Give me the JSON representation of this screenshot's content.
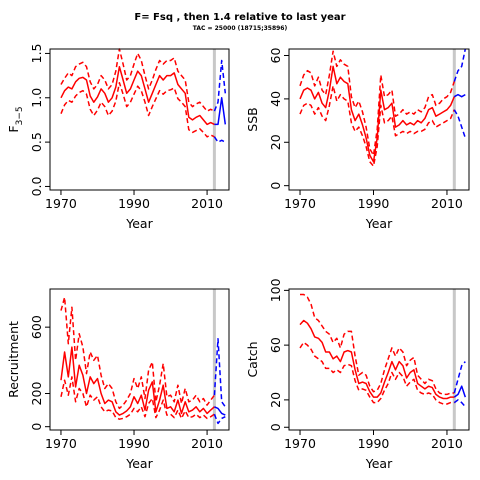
{
  "title": "F= Fsq , then 1.4  relative to last year",
  "subtitle": "TAC = 25000 (18715;35896)",
  "colors": {
    "history": "#ff0000",
    "forecast": "#0000ff",
    "reference": "#c8c8c8"
  },
  "chart_data": [
    {
      "type": "line",
      "panel": "top-left",
      "ylabel_main": "F",
      "ylabel_sub": "3−5",
      "xlabel": "Year",
      "xlim": [
        1967,
        2016
      ],
      "ylim": [
        -0.04,
        1.55
      ],
      "xticks": [
        "1970",
        "1990",
        "2010"
      ],
      "xtick_values": [
        1970,
        1990,
        2010
      ],
      "yticks": [
        "0.0",
        "0.5",
        "1.0",
        "1.5"
      ],
      "ytick_values": [
        0,
        0.5,
        1,
        1.5
      ],
      "reference_x": 2012,
      "history": {
        "years": [
          1970,
          1971,
          1972,
          1973,
          1974,
          1975,
          1976,
          1977,
          1978,
          1979,
          1980,
          1981,
          1982,
          1983,
          1984,
          1985,
          1986,
          1987,
          1988,
          1989,
          1990,
          1991,
          1992,
          1993,
          1994,
          1995,
          1996,
          1997,
          1998,
          1999,
          2000,
          2001,
          2002,
          2003,
          2004,
          2005,
          2006,
          2007,
          2008,
          2009,
          2010,
          2011,
          2012
        ],
        "mid": [
          1.0,
          1.08,
          1.12,
          1.1,
          1.18,
          1.22,
          1.23,
          1.2,
          1.02,
          0.95,
          1.01,
          1.1,
          1.05,
          0.95,
          1.0,
          1.12,
          1.35,
          1.2,
          1.05,
          1.1,
          1.2,
          1.3,
          1.25,
          1.1,
          0.95,
          1.05,
          1.15,
          1.25,
          1.2,
          1.25,
          1.25,
          1.28,
          1.15,
          1.1,
          1.05,
          0.78,
          0.75,
          0.78,
          0.8,
          0.75,
          0.7,
          0.72,
          0.7
        ],
        "upper": [
          1.15,
          1.22,
          1.28,
          1.25,
          1.35,
          1.38,
          1.4,
          1.35,
          1.18,
          1.1,
          1.15,
          1.25,
          1.2,
          1.1,
          1.15,
          1.3,
          1.55,
          1.38,
          1.2,
          1.25,
          1.38,
          1.5,
          1.42,
          1.25,
          1.1,
          1.2,
          1.32,
          1.42,
          1.38,
          1.42,
          1.42,
          1.45,
          1.3,
          1.25,
          1.2,
          0.95,
          0.9,
          0.93,
          0.95,
          0.9,
          0.85,
          0.87,
          0.85
        ],
        "lower": [
          0.82,
          0.92,
          0.97,
          0.95,
          1.02,
          1.06,
          1.08,
          1.04,
          0.87,
          0.8,
          0.86,
          0.95,
          0.9,
          0.8,
          0.85,
          0.96,
          1.17,
          1.04,
          0.9,
          0.95,
          1.04,
          1.13,
          1.08,
          0.95,
          0.8,
          0.9,
          0.99,
          1.08,
          1.04,
          1.08,
          1.09,
          1.11,
          0.99,
          0.95,
          0.9,
          0.64,
          0.61,
          0.63,
          0.65,
          0.61,
          0.56,
          0.58,
          0.56
        ]
      },
      "forecast": {
        "years": [
          2012,
          2013,
          2014,
          2015
        ],
        "mid": [
          0.7,
          0.7,
          1.0,
          0.7
        ],
        "upper": [
          0.85,
          0.95,
          1.42,
          1.05
        ],
        "lower": [
          0.56,
          0.5,
          0.52,
          0.5
        ]
      }
    },
    {
      "type": "line",
      "panel": "top-right",
      "ylabel_main": "SSB",
      "xlabel": "Year",
      "xlim": [
        1967,
        2016
      ],
      "ylim": [
        -2,
        63
      ],
      "xticks": [
        "1970",
        "1990",
        "2010"
      ],
      "xtick_values": [
        1970,
        1990,
        2010
      ],
      "yticks": [
        "0",
        "20",
        "40",
        "60"
      ],
      "ytick_values": [
        0,
        20,
        40,
        60
      ],
      "reference_x": 2012,
      "history": {
        "years": [
          1970,
          1971,
          1972,
          1973,
          1974,
          1975,
          1976,
          1977,
          1978,
          1979,
          1980,
          1981,
          1982,
          1983,
          1984,
          1985,
          1986,
          1987,
          1988,
          1989,
          1990,
          1991,
          1992,
          1993,
          1994,
          1995,
          1996,
          1997,
          1998,
          1999,
          2000,
          2001,
          2002,
          2003,
          2004,
          2005,
          2006,
          2007,
          2008,
          2009,
          2010,
          2011,
          2012
        ],
        "mid": [
          40,
          44,
          45,
          44,
          40,
          43,
          38,
          36,
          44,
          55,
          47,
          50,
          48,
          47,
          35,
          30,
          33,
          28,
          22,
          14,
          11,
          22,
          44,
          35,
          36,
          38,
          27,
          28,
          30,
          28,
          29,
          28,
          30,
          29,
          31,
          35,
          36,
          32,
          33,
          34,
          35,
          37,
          41
        ],
        "upper": [
          46,
          51,
          53,
          52,
          46,
          50,
          44,
          42,
          51,
          62,
          55,
          58,
          56,
          55,
          41,
          36,
          39,
          34,
          27,
          17,
          14,
          26,
          51,
          41,
          42,
          44,
          32,
          33,
          35,
          33,
          34,
          33,
          35,
          34,
          36,
          41,
          42,
          37,
          38,
          40,
          41,
          43,
          48
        ],
        "lower": [
          33,
          37,
          38,
          37,
          33,
          36,
          32,
          30,
          37,
          46,
          39,
          42,
          40,
          39,
          29,
          25,
          27,
          23,
          18,
          11,
          9,
          18,
          37,
          29,
          30,
          32,
          23,
          24,
          25,
          24,
          25,
          24,
          25,
          25,
          26,
          29,
          30,
          27,
          28,
          29,
          30,
          31,
          35
        ]
      },
      "forecast": {
        "years": [
          2012,
          2013,
          2014,
          2015
        ],
        "mid": [
          41,
          42,
          41,
          42
        ],
        "upper": [
          48,
          53,
          55,
          63
        ],
        "lower": [
          35,
          32,
          27,
          22
        ]
      }
    },
    {
      "type": "line",
      "panel": "bottom-left",
      "ylabel_main": "Recruitment",
      "xlabel": "Year",
      "xlim": [
        1967,
        2016
      ],
      "ylim": [
        -20,
        830
      ],
      "xticks": [
        "1970",
        "1990",
        "2010"
      ],
      "xtick_values": [
        1970,
        1990,
        2010
      ],
      "yticks": [
        "0",
        "200",
        "600"
      ],
      "ytick_values": [
        0,
        200,
        600
      ],
      "reference_x": 2012,
      "history": {
        "years": [
          1970,
          1971,
          1972,
          1973,
          1974,
          1975,
          1976,
          1977,
          1978,
          1979,
          1980,
          1981,
          1982,
          1983,
          1984,
          1985,
          1986,
          1987,
          1988,
          1989,
          1990,
          1991,
          1992,
          1993,
          1994,
          1995,
          1996,
          1997,
          1998,
          1999,
          2000,
          2001,
          2002,
          2003,
          2004,
          2005,
          2006,
          2007,
          2008,
          2009,
          2010,
          2011,
          2012
        ],
        "mid": [
          280,
          450,
          300,
          480,
          240,
          370,
          310,
          200,
          300,
          260,
          290,
          200,
          140,
          160,
          150,
          90,
          70,
          80,
          95,
          120,
          180,
          140,
          190,
          100,
          220,
          270,
          90,
          160,
          250,
          110,
          120,
          90,
          160,
          80,
          150,
          90,
          100,
          120,
          90,
          110,
          80,
          100,
          120
        ],
        "upper": [
          700,
          780,
          500,
          720,
          400,
          560,
          480,
          320,
          450,
          400,
          430,
          310,
          230,
          260,
          230,
          150,
          110,
          130,
          160,
          200,
          290,
          230,
          300,
          170,
          340,
          390,
          150,
          250,
          380,
          180,
          190,
          150,
          250,
          140,
          230,
          150,
          160,
          190,
          150,
          170,
          130,
          160,
          190
        ],
        "lower": [
          180,
          280,
          190,
          300,
          150,
          230,
          200,
          120,
          190,
          160,
          180,
          120,
          90,
          100,
          95,
          55,
          45,
          50,
          60,
          75,
          110,
          90,
          120,
          60,
          140,
          170,
          55,
          100,
          160,
          70,
          75,
          55,
          100,
          50,
          95,
          55,
          60,
          75,
          55,
          70,
          50,
          60,
          75
        ]
      },
      "forecast": {
        "years": [
          2012,
          2013,
          2014,
          2015
        ],
        "mid": [
          120,
          110,
          80,
          70
        ],
        "upper": [
          190,
          530,
          150,
          120
        ],
        "lower": [
          75,
          20,
          50,
          60
        ]
      }
    },
    {
      "type": "line",
      "panel": "bottom-right",
      "ylabel_main": "Catch",
      "xlabel": "Year",
      "xlim": [
        1967,
        2016
      ],
      "ylim": [
        -2,
        101
      ],
      "xticks": [
        "1970",
        "1990",
        "2010"
      ],
      "xtick_values": [
        1970,
        1990,
        2010
      ],
      "yticks": [
        "0",
        "20",
        "60",
        "100"
      ],
      "ytick_values": [
        0,
        20,
        60,
        100
      ],
      "reference_x": 2012,
      "history": {
        "years": [
          1970,
          1971,
          1972,
          1973,
          1974,
          1975,
          1976,
          1977,
          1978,
          1979,
          1980,
          1981,
          1982,
          1983,
          1984,
          1985,
          1986,
          1987,
          1988,
          1989,
          1990,
          1991,
          1992,
          1993,
          1994,
          1995,
          1996,
          1997,
          1998,
          1999,
          2000,
          2001,
          2002,
          2003,
          2004,
          2005,
          2006,
          2007,
          2008,
          2009,
          2010,
          2011,
          2012
        ],
        "mid": [
          75,
          78,
          76,
          72,
          66,
          65,
          62,
          55,
          55,
          50,
          52,
          48,
          55,
          56,
          55,
          42,
          32,
          33,
          32,
          26,
          22,
          22,
          25,
          33,
          40,
          48,
          42,
          48,
          45,
          36,
          40,
          42,
          32,
          30,
          28,
          30,
          29,
          24,
          22,
          21,
          21,
          22,
          22
        ],
        "upper": [
          97,
          97,
          95,
          90,
          80,
          78,
          74,
          70,
          68,
          62,
          65,
          58,
          68,
          70,
          70,
          52,
          38,
          40,
          38,
          30,
          26,
          27,
          32,
          42,
          50,
          58,
          52,
          58,
          55,
          45,
          49,
          51,
          38,
          35,
          32,
          35,
          34,
          28,
          25,
          24,
          24,
          25,
          25
        ],
        "lower": [
          58,
          62,
          60,
          57,
          52,
          50,
          48,
          43,
          43,
          40,
          42,
          40,
          45,
          46,
          45,
          34,
          27,
          28,
          27,
          22,
          18,
          18,
          21,
          27,
          32,
          40,
          35,
          40,
          37,
          30,
          33,
          35,
          27,
          25,
          24,
          25,
          24,
          20,
          18,
          17,
          17,
          18,
          18
        ]
      },
      "forecast": {
        "years": [
          2012,
          2013,
          2014,
          2015
        ],
        "mid": [
          22,
          24,
          30,
          22
        ],
        "upper": [
          25,
          35,
          45,
          48
        ],
        "lower": [
          18,
          20,
          18,
          15
        ]
      }
    }
  ]
}
